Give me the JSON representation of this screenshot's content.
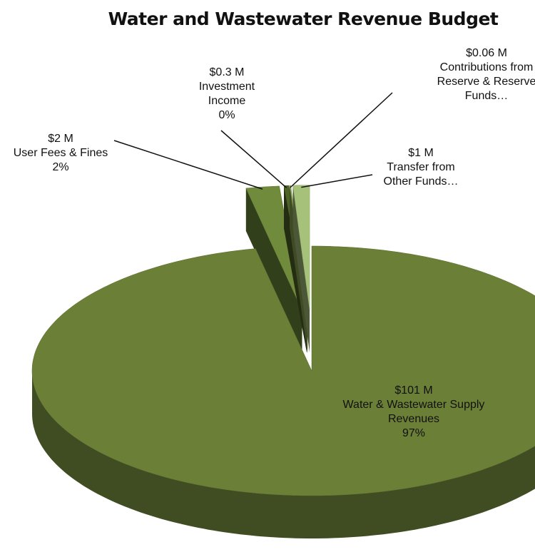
{
  "chart_data": {
    "type": "pie3d",
    "title": "Water and Wastewater Revenue Budget",
    "categories": [
      "Water & Wastewater Supply Revenues",
      "User Fees & Fines",
      "Investment Income",
      "Contributions from Reserve & Reserve Funds…",
      "Transfer from Other Funds…"
    ],
    "values": [
      101,
      2,
      0.3,
      0.06,
      1
    ],
    "value_labels": [
      "$101 M",
      "$2 M",
      "$0.3 M",
      "$0.06 M",
      "$1 M"
    ],
    "percent_labels": [
      "97%",
      "2%",
      "0%",
      null,
      null
    ],
    "colors": [
      "#6b7f37",
      "#6f8b3b",
      "#4f6228",
      "#8aa64f",
      "#a6c27a"
    ]
  }
}
